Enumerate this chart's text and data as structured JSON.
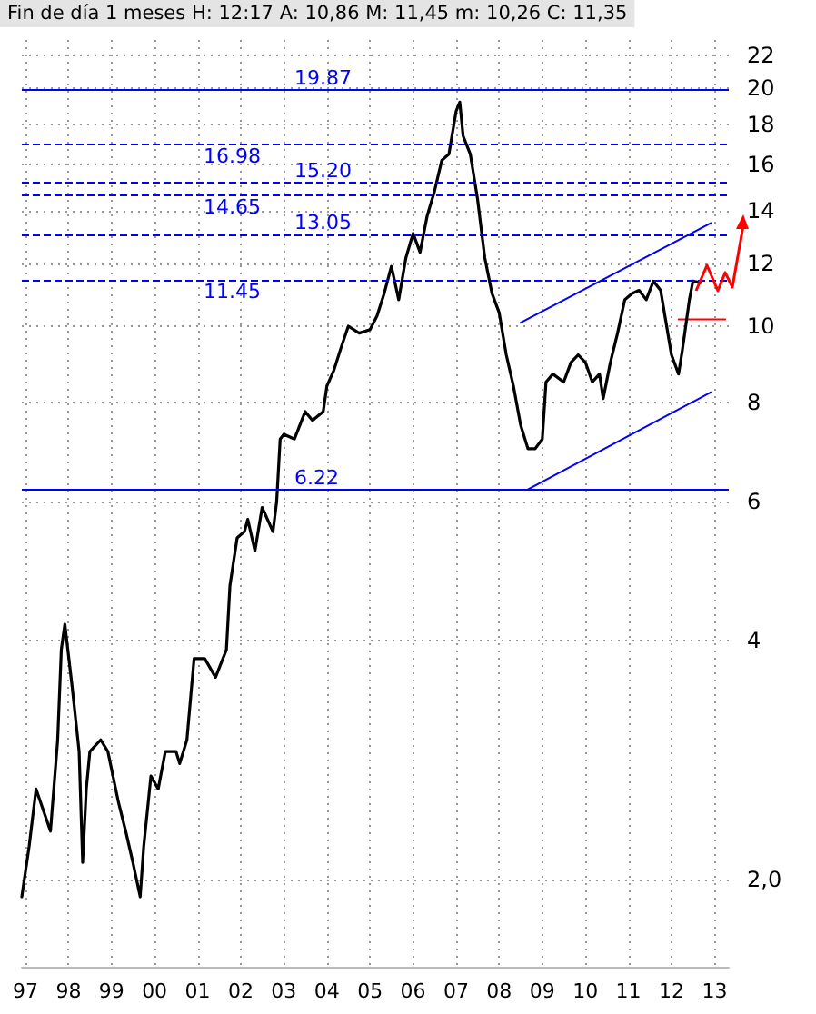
{
  "chart_data": {
    "type": "line",
    "title": "Fin de día 1 meses H: 12:17 A: 10,86 M: 11,45 m: 10,26 C: 11,35",
    "log": "y",
    "grid": true,
    "marker": "none",
    "line_style": "solid",
    "xlim": [
      "1996-12",
      "2013-05"
    ],
    "xticks": [
      {
        "value": "1997-01",
        "label": "97"
      },
      {
        "value": "1998-01",
        "label": "98"
      },
      {
        "value": "1999-01",
        "label": "99"
      },
      {
        "value": "2000-01",
        "label": "00"
      },
      {
        "value": "2001-01",
        "label": "01"
      },
      {
        "value": "2002-01",
        "label": "02"
      },
      {
        "value": "2003-01",
        "label": "03"
      },
      {
        "value": "2004-01",
        "label": "04"
      },
      {
        "value": "2005-01",
        "label": "05"
      },
      {
        "value": "2006-01",
        "label": "06"
      },
      {
        "value": "2007-01",
        "label": "07"
      },
      {
        "value": "2008-01",
        "label": "08"
      },
      {
        "value": "2009-01",
        "label": "09"
      },
      {
        "value": "2010-01",
        "label": "10"
      },
      {
        "value": "2011-01",
        "label": "11"
      },
      {
        "value": "2012-01",
        "label": "12"
      },
      {
        "value": "2013-01",
        "label": "13"
      }
    ],
    "ylim": [
      1.55,
      23
    ],
    "yticks": [
      {
        "value": 2,
        "label": "2,0"
      },
      4,
      6,
      8,
      10,
      12,
      14,
      16,
      18,
      20,
      22
    ],
    "series": [
      {
        "color": "#000000",
        "x": [
          "1996-12",
          "1997-02",
          "1997-04",
          "1997-08",
          "1997-10",
          "1997-11",
          "1997-12",
          "1998-02",
          "1998-04",
          "1998-05",
          "1998-06",
          "1998-07",
          "1998-10",
          "1998-12",
          "1999-03",
          "1999-05",
          "1999-07",
          "1999-09",
          "1999-10",
          "1999-12",
          "2000-02",
          "2000-04",
          "2000-07",
          "2000-08",
          "2000-10",
          "2000-12",
          "2001-03",
          "2001-06",
          "2001-09",
          "2001-10",
          "2001-12",
          "2002-02",
          "2002-03",
          "2002-05",
          "2002-07",
          "2002-10",
          "2002-11",
          "2002-12",
          "2003-01",
          "2003-04",
          "2003-07",
          "2003-09",
          "2003-12",
          "2004-01",
          "2004-03",
          "2004-05",
          "2004-07",
          "2004-10",
          "2005-01",
          "2005-03",
          "2005-05",
          "2005-07",
          "2005-09",
          "2005-11",
          "2006-01",
          "2006-03",
          "2006-05",
          "2006-07",
          "2006-09",
          "2006-11",
          "2007-01",
          "2007-02",
          "2007-03",
          "2007-05",
          "2007-07",
          "2007-09",
          "2007-11",
          "2008-01",
          "2008-03",
          "2008-05",
          "2008-07",
          "2008-09",
          "2008-11",
          "2009-01",
          "2009-02",
          "2009-04",
          "2009-07",
          "2009-09",
          "2009-11",
          "2010-01",
          "2010-03",
          "2010-05",
          "2010-06",
          "2010-08",
          "2010-10",
          "2010-12",
          "2011-02",
          "2011-04",
          "2011-06",
          "2011-08",
          "2011-10",
          "2011-12",
          "2012-01",
          "2012-03",
          "2012-04",
          "2012-06",
          "2012-07",
          "2012-09"
        ],
        "values": [
          1.9,
          2.2,
          2.6,
          2.3,
          3.0,
          3.9,
          4.2,
          3.5,
          2.9,
          2.1,
          2.6,
          2.9,
          3.0,
          2.9,
          2.5,
          2.3,
          2.1,
          1.9,
          2.2,
          2.7,
          2.6,
          2.9,
          2.9,
          2.8,
          3.0,
          3.8,
          3.8,
          3.6,
          3.9,
          4.7,
          5.4,
          5.5,
          5.7,
          5.2,
          5.9,
          5.5,
          6.0,
          7.2,
          7.3,
          7.2,
          7.8,
          7.6,
          7.8,
          8.4,
          8.8,
          9.4,
          10.0,
          9.8,
          9.9,
          10.3,
          11.0,
          11.9,
          10.8,
          12.2,
          13.1,
          12.4,
          13.8,
          14.8,
          16.2,
          16.5,
          18.7,
          19.2,
          17.4,
          16.5,
          14.5,
          12.2,
          11.0,
          10.4,
          9.2,
          8.4,
          7.5,
          7.0,
          7.0,
          7.2,
          8.5,
          8.7,
          8.5,
          9.0,
          9.2,
          9.0,
          8.5,
          8.7,
          8.1,
          9.0,
          9.8,
          10.8,
          11.0,
          11.1,
          10.8,
          11.4,
          11.1,
          9.8,
          9.2,
          8.7,
          9.3,
          10.8,
          11.4,
          11.35
        ]
      },
      {
        "type": "line",
        "color": "#0000ff",
        "x": [
          "2008-07",
          "2012-12"
        ],
        "values": [
          10.1,
          13.5
        ]
      },
      {
        "type": "line",
        "color": "#0000ff",
        "x": [
          "2008-09",
          "2012-12"
        ],
        "values": [
          6.22,
          8.25
        ]
      },
      {
        "type": "line",
        "color": "#ff0000",
        "x": [
          "2012-03",
          "2013-04"
        ],
        "values": [
          10.2,
          10.2
        ]
      }
    ],
    "ref_lines": [
      {
        "axis": "y",
        "value": 19.87,
        "label": "19.87",
        "color": "#0000ff",
        "line_style": "solid"
      },
      {
        "axis": "y",
        "value": 16.98,
        "label": "16.98",
        "color": "#0000ff",
        "line_style": "dashed"
      },
      {
        "axis": "y",
        "value": 15.2,
        "label": "15.20",
        "color": "#0000ff",
        "line_style": "dashed"
      },
      {
        "axis": "y",
        "value": 14.65,
        "label": "14.65",
        "color": "#0000ff",
        "line_style": "dashed"
      },
      {
        "axis": "y",
        "value": 13.05,
        "label": "13.05",
        "color": "#0000ff",
        "line_style": "dashed"
      },
      {
        "axis": "y",
        "value": 11.45,
        "label": "11.45",
        "color": "#0000ff",
        "line_style": "dashed"
      },
      {
        "axis": "y",
        "value": 6.22,
        "label": "6.22",
        "color": "#0000ff",
        "line_style": "solid"
      }
    ]
  }
}
